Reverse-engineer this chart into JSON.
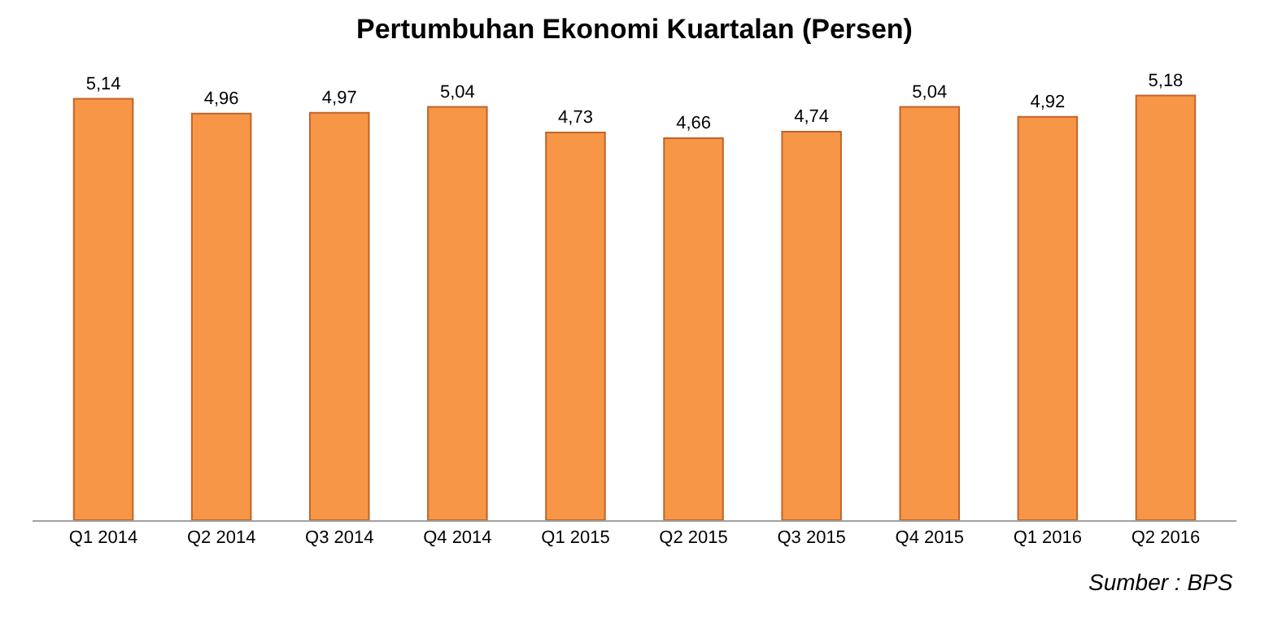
{
  "chart_data": {
    "type": "bar",
    "title": "Pertumbuhan Ekonomi Kuartalan (Persen)",
    "categories": [
      "Q1 2014",
      "Q2 2014",
      "Q3 2014",
      "Q4 2014",
      "Q1 2015",
      "Q2 2015",
      "Q3 2015",
      "Q4 2015",
      "Q1 2016",
      "Q2 2016"
    ],
    "values": [
      5.14,
      4.96,
      4.97,
      5.04,
      4.73,
      4.66,
      4.74,
      5.04,
      4.92,
      5.18
    ],
    "value_labels": [
      "5,14",
      "4,96",
      "4,97",
      "5,04",
      "4,73",
      "4,66",
      "4,74",
      "5,04",
      "4,92",
      "5,18"
    ],
    "color": "#f79646",
    "tick_labels": "x",
    "annotations": [
      "Sumber : BPS"
    ]
  }
}
